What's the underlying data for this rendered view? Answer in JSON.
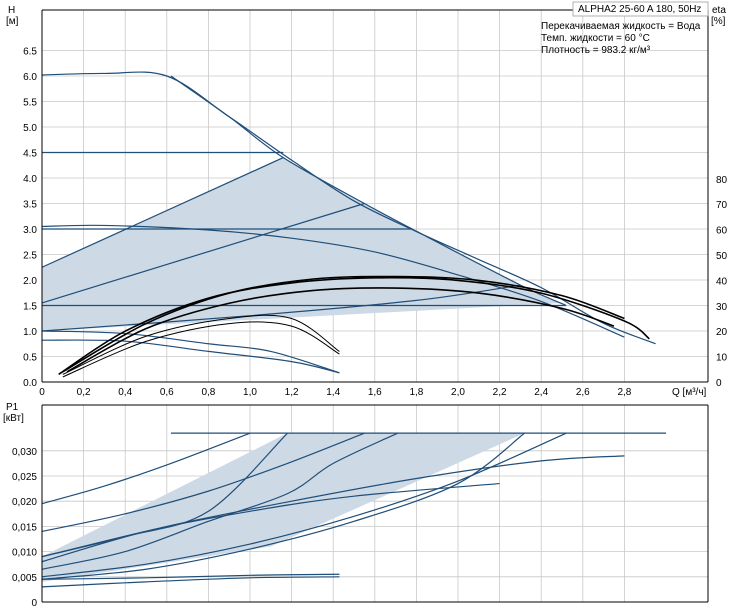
{
  "header": {
    "title": "ALPHA2 25-60 A 180, 50Hz",
    "info": [
      "Перекачиваемая жидкость = Вода",
      "Темп. жидкости = 60 °C",
      "Плотность = 983.2 кг/м³"
    ]
  },
  "chart_data": [
    {
      "type": "line",
      "title": "ALPHA2 25-60 A 180, 50Hz",
      "xlabel": "Q [м³/ч]",
      "ylabel_line1": "H",
      "ylabel_line2": "[м]",
      "y2label_line1": "eta",
      "y2label_line2": "[%]",
      "xlim": [
        0,
        3.2
      ],
      "ylim": [
        0,
        7.0
      ],
      "y2lim": [
        0,
        90
      ],
      "x_ticks": [
        "0",
        "0,2",
        "0,4",
        "0,6",
        "0,8",
        "1,0",
        "1,2",
        "1,4",
        "1,6",
        "1,8",
        "2,0",
        "2,2",
        "2,4",
        "2,6",
        "2,8"
      ],
      "y_ticks": [
        "0.0",
        "0.5",
        "1.0",
        "1.5",
        "2.0",
        "2.5",
        "3.0",
        "3.5",
        "4.0",
        "4.5",
        "5.0",
        "5.5",
        "6.0",
        "6.5"
      ],
      "y2_ticks": [
        "0",
        "10",
        "20",
        "30",
        "40",
        "50",
        "60",
        "70",
        "80"
      ],
      "grid": true,
      "operating_area": [
        [
          0,
          2.25
        ],
        [
          1.16,
          4.4
        ],
        [
          1.55,
          3.5
        ],
        [
          2.3,
          1.9
        ],
        [
          2.5,
          1.55
        ],
        [
          0,
          1.0
        ]
      ],
      "series": [
        {
          "values": [
            [
              0,
              6.02
            ],
            [
              0.3,
              6.05
            ],
            [
              0.6,
              6.0
            ],
            [
              0.9,
              5.2
            ],
            [
              1.2,
              4.35
            ],
            [
              1.5,
              3.55
            ],
            [
              1.8,
              2.95
            ],
            [
              2.1,
              2.4
            ],
            [
              2.4,
              1.85
            ],
            [
              2.7,
              1.15
            ],
            [
              2.95,
              0.75
            ]
          ]
        },
        {
          "values": [
            [
              0,
              4.5
            ],
            [
              1.16,
              4.5
            ]
          ]
        },
        {
          "values": [
            [
              0,
              3.0
            ],
            [
              1.78,
              3.0
            ]
          ]
        },
        {
          "values": [
            [
              0,
              1.5
            ],
            [
              2.52,
              1.5
            ]
          ]
        },
        {
          "values": [
            [
              0,
              3.05
            ],
            [
              0.3,
              3.07
            ],
            [
              0.8,
              2.98
            ],
            [
              1.2,
              2.82
            ],
            [
              1.6,
              2.55
            ],
            [
              2.0,
              2.1
            ],
            [
              2.4,
              1.58
            ],
            [
              2.8,
              0.88
            ]
          ]
        },
        {
          "values": [
            [
              0,
              2.25
            ],
            [
              1.16,
              4.4
            ]
          ]
        },
        {
          "values": [
            [
              0,
              1.55
            ],
            [
              1.55,
              3.5
            ]
          ]
        },
        {
          "values": [
            [
              0,
              1.0
            ],
            [
              1.0,
              1.3
            ],
            [
              1.8,
              1.6
            ],
            [
              2.3,
              1.9
            ]
          ]
        },
        {
          "values": [
            [
              0,
              1.0
            ],
            [
              0.4,
              0.95
            ],
            [
              0.8,
              0.75
            ],
            [
              1.1,
              0.6
            ],
            [
              1.43,
              0.18
            ]
          ]
        },
        {
          "values": [
            [
              0,
              0.82
            ],
            [
              0.4,
              0.8
            ],
            [
              0.8,
              0.6
            ],
            [
              1.2,
              0.4
            ],
            [
              1.43,
              0.18
            ]
          ]
        },
        {
          "values": [
            [
              0.62,
              6.0
            ],
            [
              0.9,
              5.2
            ],
            [
              1.16,
              4.4
            ],
            [
              1.55,
              3.5
            ],
            [
              1.78,
              3.0
            ],
            [
              2.3,
              1.9
            ],
            [
              2.52,
              1.5
            ]
          ]
        }
      ],
      "eta_curves": [
        {
          "values": [
            [
              0.08,
              3
            ],
            [
              0.4,
              20
            ],
            [
              0.8,
              33
            ],
            [
              1.2,
              39
            ],
            [
              1.6,
              41
            ],
            [
              2.0,
              40
            ],
            [
              2.4,
              35
            ],
            [
              2.8,
              24
            ],
            [
              2.92,
              17
            ]
          ]
        },
        {
          "values": [
            [
              0.1,
              4
            ],
            [
              0.5,
              23
            ],
            [
              0.9,
              35
            ],
            [
              1.3,
              40.5
            ],
            [
              1.7,
              41.5
            ],
            [
              2.1,
              40
            ],
            [
              2.5,
              34
            ],
            [
              2.8,
              25
            ]
          ]
        },
        {
          "values": [
            [
              0.12,
              4
            ],
            [
              0.5,
              21
            ],
            [
              0.9,
              31
            ],
            [
              1.3,
              36
            ],
            [
              1.7,
              37
            ],
            [
              2.1,
              35
            ],
            [
              2.5,
              29
            ],
            [
              2.75,
              22
            ]
          ]
        },
        {
          "values": [
            [
              0.1,
              3
            ],
            [
              0.5,
              18
            ],
            [
              0.9,
              25
            ],
            [
              1.2,
              25
            ],
            [
              1.43,
              12
            ]
          ]
        },
        {
          "values": [
            [
              0.1,
              2
            ],
            [
              0.5,
              16
            ],
            [
              0.9,
              23
            ],
            [
              1.2,
              22
            ],
            [
              1.43,
              11
            ]
          ]
        }
      ]
    },
    {
      "type": "line",
      "ylabel_line1": "P1",
      "ylabel_line2": "[кВт]",
      "xlim": [
        0,
        3.2
      ],
      "ylim": [
        0,
        0.035
      ],
      "y_ticks": [
        "0",
        "0,005",
        "0,010",
        "0,015",
        "0,020",
        "0,025",
        "0,030"
      ],
      "grid": true,
      "operating_area": [
        [
          0,
          0.009
        ],
        [
          1.18,
          0.0335
        ],
        [
          2.32,
          0.0335
        ],
        [
          1.1,
          0.011
        ],
        [
          0,
          0.004
        ]
      ],
      "series": [
        {
          "values": [
            [
              0,
              0.0195
            ],
            [
              0.3,
              0.023
            ],
            [
              0.62,
              0.0275
            ],
            [
              1.0,
              0.0335
            ]
          ]
        },
        {
          "values": [
            [
              0,
              0.014
            ],
            [
              0.4,
              0.0175
            ],
            [
              0.8,
              0.022
            ],
            [
              1.18,
              0.0275
            ],
            [
              1.55,
              0.0335
            ]
          ]
        },
        {
          "values": [
            [
              0.62,
              0.0335
            ],
            [
              3.0,
              0.0335
            ]
          ]
        },
        {
          "values": [
            [
              0,
              0.009
            ],
            [
              0.4,
              0.013
            ],
            [
              0.8,
              0.018
            ],
            [
              1.18,
              0.0335
            ]
          ]
        },
        {
          "values": [
            [
              0,
              0.0065
            ],
            [
              0.4,
              0.01
            ],
            [
              0.8,
              0.016
            ],
            [
              1.18,
              0.0215
            ],
            [
              1.4,
              0.0275
            ],
            [
              1.71,
              0.0335
            ]
          ]
        },
        {
          "values": [
            [
              0,
              0.0045
            ],
            [
              0.5,
              0.0065
            ],
            [
              1.0,
              0.0105
            ],
            [
              1.5,
              0.016
            ],
            [
              2.0,
              0.0235
            ],
            [
              2.32,
              0.0335
            ]
          ]
        },
        {
          "values": [
            [
              0,
              0.005
            ],
            [
              0.5,
              0.0075
            ],
            [
              1.0,
              0.0115
            ],
            [
              1.5,
              0.017
            ],
            [
              2.0,
              0.024
            ],
            [
              2.52,
              0.0335
            ]
          ]
        },
        {
          "values": [
            [
              0,
              0.009
            ],
            [
              0.6,
              0.015
            ],
            [
              1.2,
              0.02
            ],
            [
              1.8,
              0.0245
            ],
            [
              2.4,
              0.028
            ],
            [
              2.8,
              0.029
            ]
          ]
        },
        {
          "values": [
            [
              0,
              0.008
            ],
            [
              0.5,
              0.014
            ],
            [
              1.0,
              0.018
            ],
            [
              1.5,
              0.021
            ],
            [
              2.2,
              0.0235
            ]
          ]
        },
        {
          "values": [
            [
              0,
              0.0045
            ],
            [
              0.5,
              0.0048
            ],
            [
              1.0,
              0.0053
            ],
            [
              1.43,
              0.0055
            ]
          ]
        },
        {
          "values": [
            [
              0,
              0.003
            ],
            [
              0.5,
              0.004
            ],
            [
              1.0,
              0.0048
            ],
            [
              1.43,
              0.005
            ]
          ]
        }
      ]
    }
  ]
}
